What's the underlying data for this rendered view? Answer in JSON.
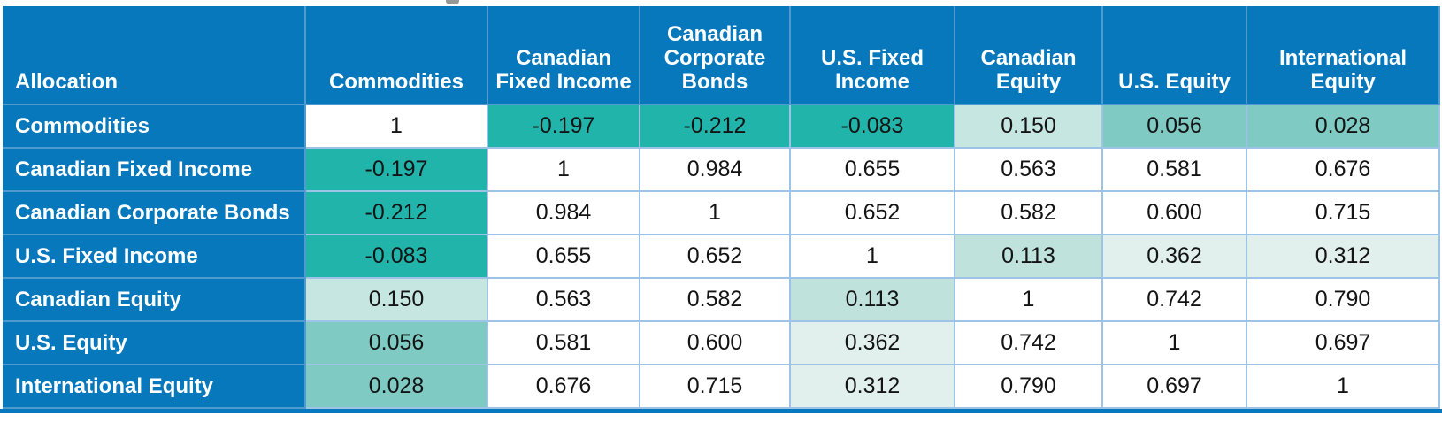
{
  "colors": {
    "header_bg": "#0878bc",
    "header_text": "#ffffff",
    "value_text": "#141414",
    "grid_light": "#9dc3e6",
    "grid_on_blue": "#4f9ace",
    "bottom_bar": "#0878bc",
    "artifact_gray": "#979797",
    "scale_strong_teal": "#21b4ab",
    "scale_medium_teal": "#7fcac3",
    "scale_light_teal": "#bfe2dd",
    "scale_pale_teal": "#c6e6e1",
    "scale_faint_teal": "#e1f0ec",
    "scale_white": "#ffffff"
  },
  "chart_data": {
    "type": "heatmap",
    "corner_label": "Allocation",
    "columns": [
      "Commodities",
      "Canadian Fixed Income",
      "Canadian Corporate Bonds",
      "U.S. Fixed Income",
      "Canadian Equity",
      "U.S. Equity",
      "International Equity"
    ],
    "rows": [
      "Commodities",
      "Canadian Fixed Income",
      "Canadian Corporate Bonds",
      "U.S. Fixed Income",
      "Canadian Equity",
      "U.S. Equity",
      "International Equity"
    ],
    "values": [
      [
        1,
        -0.197,
        -0.212,
        -0.083,
        0.15,
        0.056,
        0.028
      ],
      [
        -0.197,
        1,
        0.984,
        0.655,
        0.563,
        0.581,
        0.676
      ],
      [
        -0.212,
        0.984,
        1,
        0.652,
        0.582,
        0.6,
        0.715
      ],
      [
        -0.083,
        0.655,
        0.652,
        1,
        0.113,
        0.362,
        0.312
      ],
      [
        0.15,
        0.563,
        0.582,
        0.113,
        1,
        0.742,
        0.79
      ],
      [
        0.056,
        0.581,
        0.6,
        0.362,
        0.742,
        1,
        0.697
      ],
      [
        0.028,
        0.676,
        0.715,
        0.312,
        0.79,
        0.697,
        1
      ]
    ],
    "display": [
      [
        "1",
        "-0.197",
        "-0.212",
        "-0.083",
        "0.150",
        "0.056",
        "0.028"
      ],
      [
        "-0.197",
        "1",
        "0.984",
        "0.655",
        "0.563",
        "0.581",
        "0.676"
      ],
      [
        "-0.212",
        "0.984",
        "1",
        "0.652",
        "0.582",
        "0.600",
        "0.715"
      ],
      [
        "-0.083",
        "0.655",
        "0.652",
        "1",
        "0.113",
        "0.362",
        "0.312"
      ],
      [
        "0.150",
        "0.563",
        "0.582",
        "0.113",
        "1",
        "0.742",
        "0.790"
      ],
      [
        "0.056",
        "0.581",
        "0.600",
        "0.362",
        "0.742",
        "1",
        "0.697"
      ],
      [
        "0.028",
        "0.676",
        "0.715",
        "0.312",
        "0.790",
        "0.697",
        "1"
      ]
    ],
    "cell_colors": [
      [
        "#ffffff",
        "#21b4ab",
        "#21b4ab",
        "#21b4ab",
        "#c6e6e1",
        "#7fcac3",
        "#7fcac3"
      ],
      [
        "#21b4ab",
        "#ffffff",
        "#ffffff",
        "#ffffff",
        "#ffffff",
        "#ffffff",
        "#ffffff"
      ],
      [
        "#21b4ab",
        "#ffffff",
        "#ffffff",
        "#ffffff",
        "#ffffff",
        "#ffffff",
        "#ffffff"
      ],
      [
        "#21b4ab",
        "#ffffff",
        "#ffffff",
        "#ffffff",
        "#bfe2dd",
        "#e1f0ec",
        "#e1f0ec"
      ],
      [
        "#c6e6e1",
        "#ffffff",
        "#ffffff",
        "#bfe2dd",
        "#ffffff",
        "#ffffff",
        "#ffffff"
      ],
      [
        "#7fcac3",
        "#ffffff",
        "#ffffff",
        "#e1f0ec",
        "#ffffff",
        "#ffffff",
        "#ffffff"
      ],
      [
        "#7fcac3",
        "#ffffff",
        "#ffffff",
        "#e1f0ec",
        "#ffffff",
        "#ffffff",
        "#ffffff"
      ]
    ],
    "color_scale_note": "teal = negative/low correlation, white = high correlation",
    "grid": true,
    "legend_position": "none"
  }
}
